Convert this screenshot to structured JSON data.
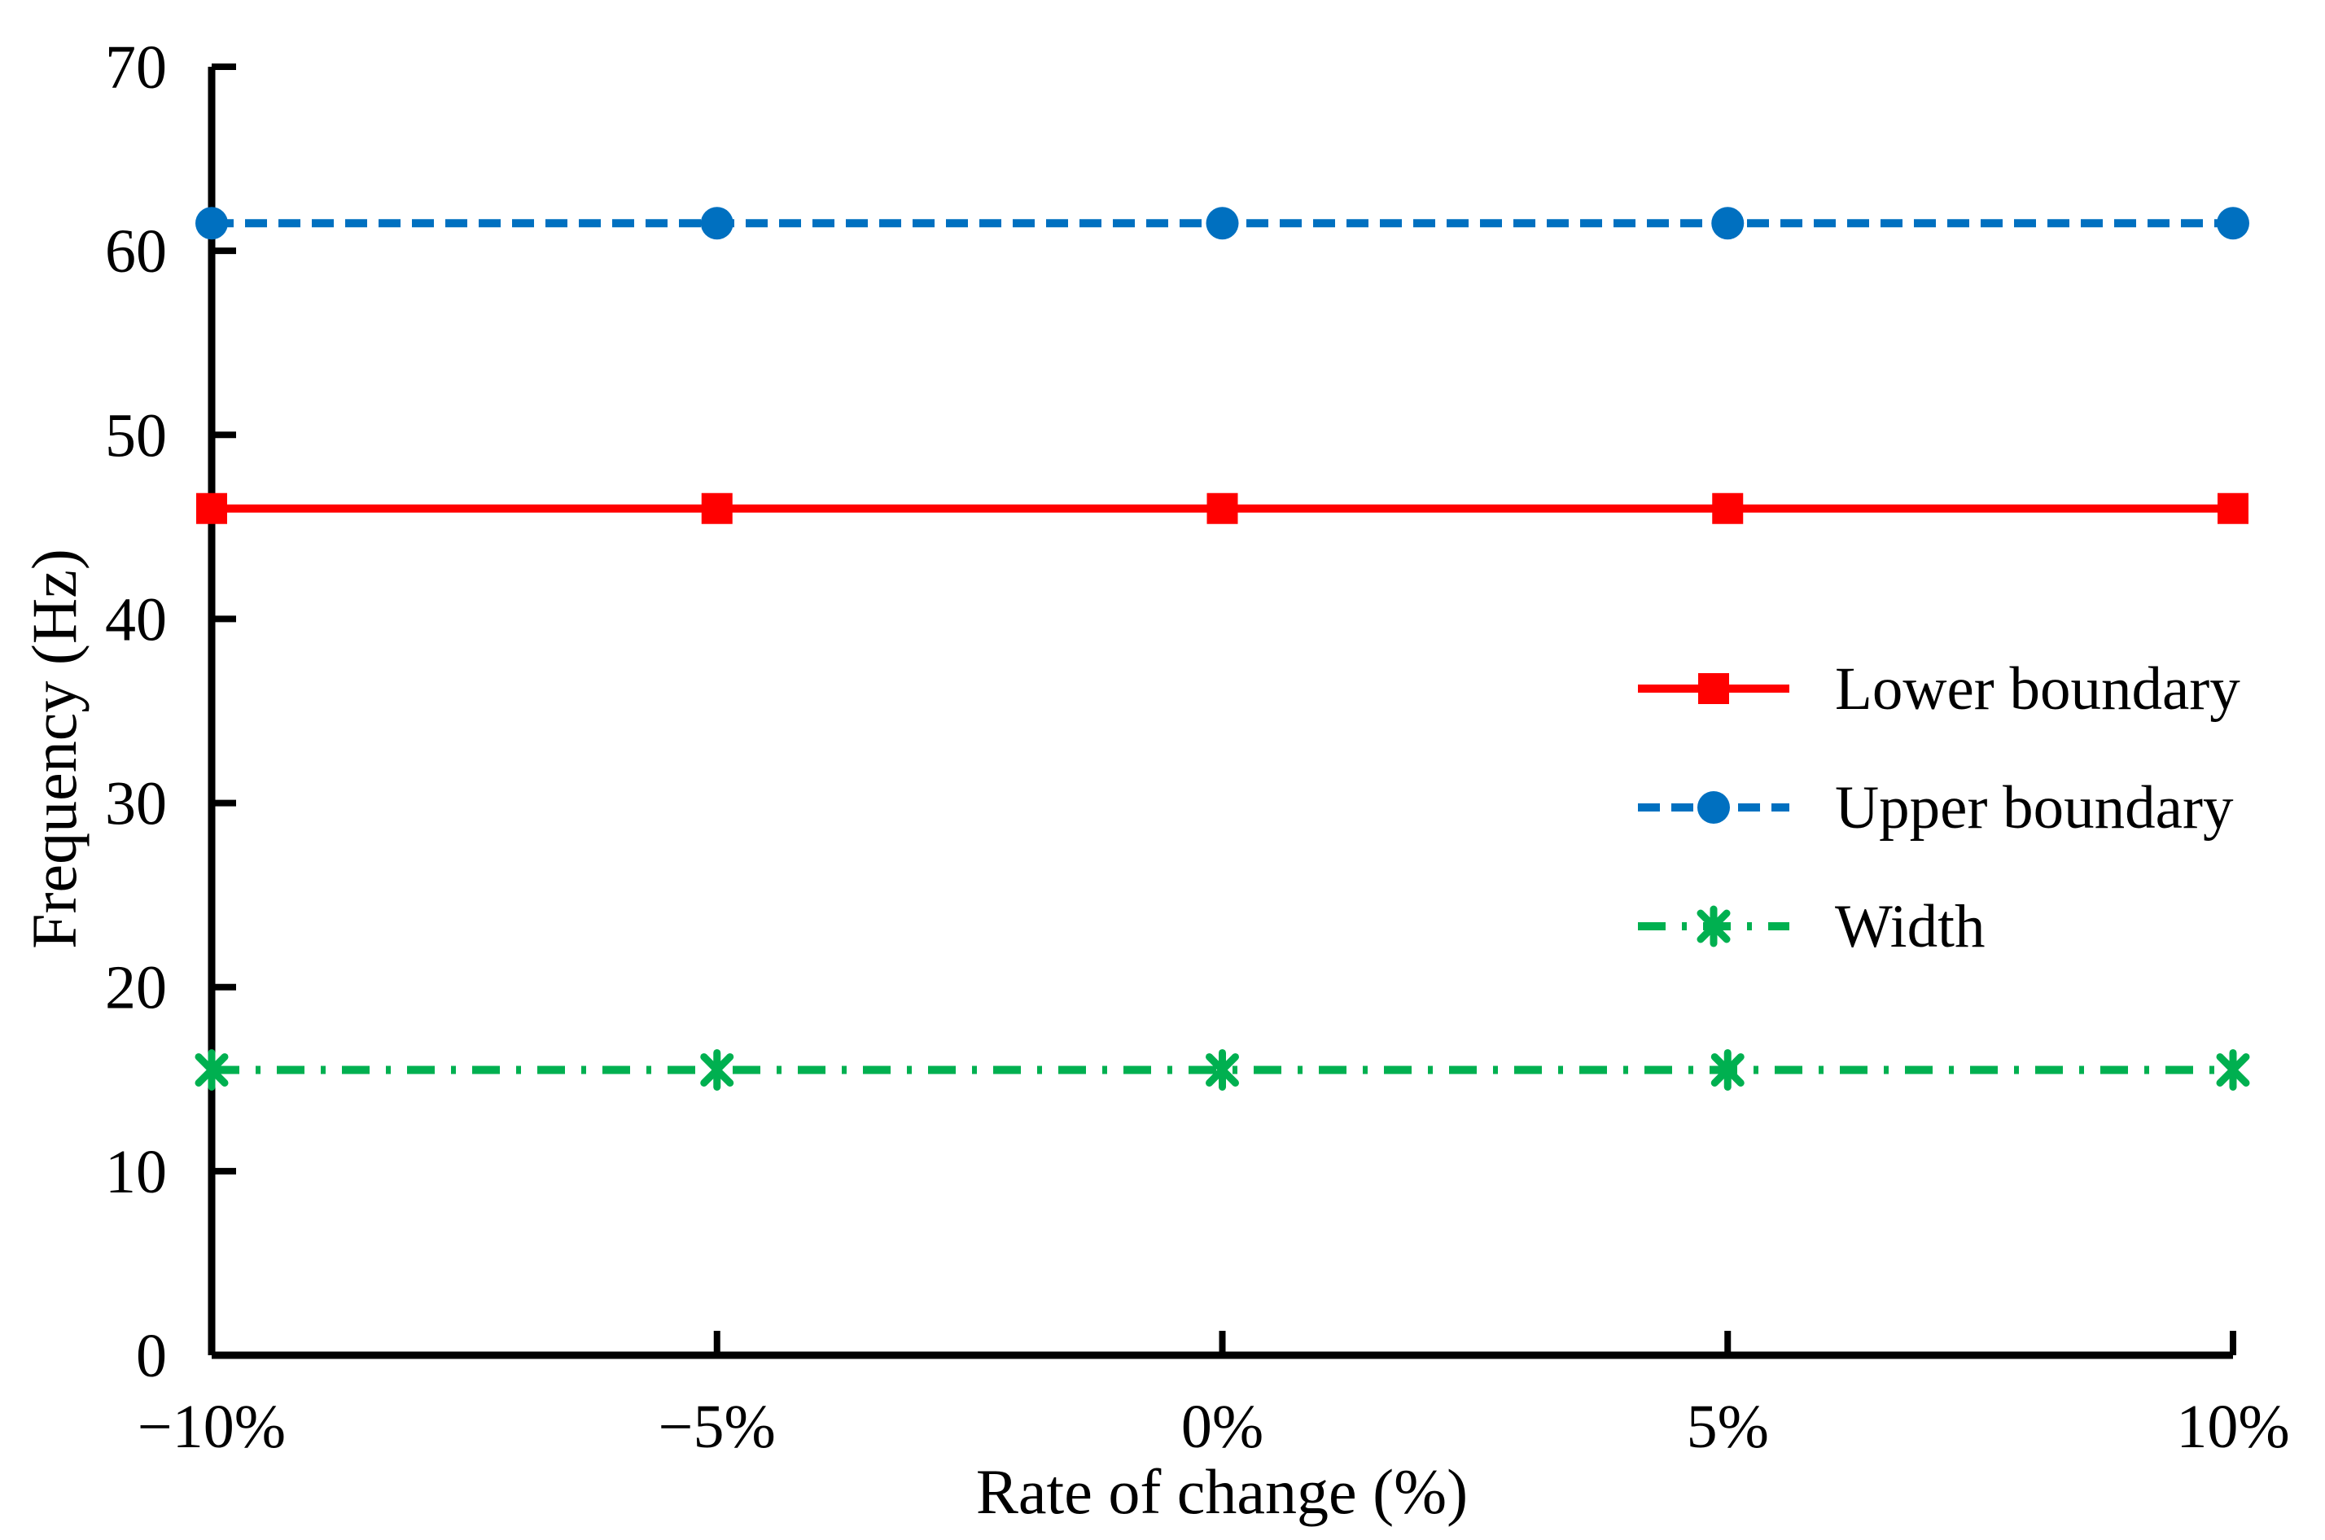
{
  "chart_data": {
    "type": "line",
    "title": "",
    "xlabel": "Rate of change (%)",
    "ylabel": "Frequency (Hz)",
    "categories": [
      "−10%",
      "−5%",
      "0%",
      "5%",
      "10%"
    ],
    "y_ticks": [
      0,
      10,
      20,
      30,
      40,
      50,
      60,
      70
    ],
    "ylim": [
      0,
      70
    ],
    "grid": false,
    "legend_position": "center-right",
    "axis_color": "#000000",
    "series": [
      {
        "name": "Lower boundary",
        "values": [
          46,
          46,
          46,
          46,
          46
        ],
        "color": "#FF0000",
        "line_style": "solid",
        "marker": "square"
      },
      {
        "name": "Upper boundary",
        "values": [
          61.5,
          61.5,
          61.5,
          61.5,
          61.5
        ],
        "color": "#0070C0",
        "line_style": "dashed",
        "marker": "circle"
      },
      {
        "name": "Width",
        "values": [
          15.5,
          15.5,
          15.5,
          15.5,
          15.5
        ],
        "color": "#00B050",
        "line_style": "dash-dot",
        "marker": "star"
      }
    ]
  }
}
